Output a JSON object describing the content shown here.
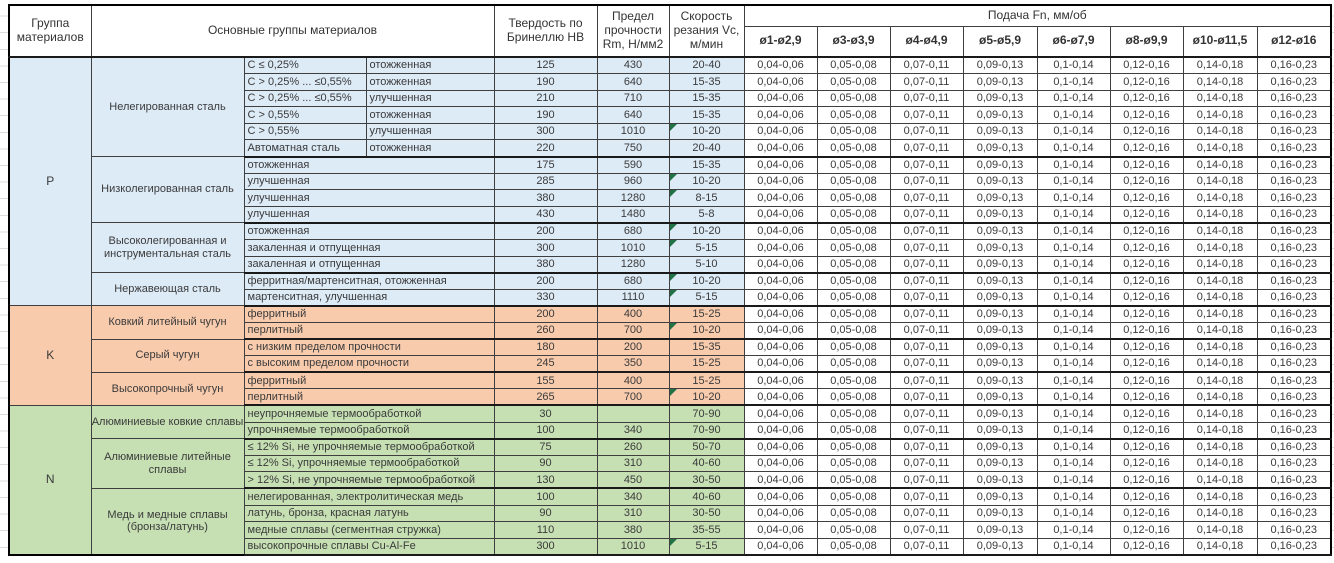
{
  "header": {
    "col_group": "Группа материалов",
    "col_main": "Основные группы материалов",
    "col_hardness": "Твердость по Бринеллю НВ",
    "col_strength": "Предел прочности Rm, Н/мм2",
    "col_speed": "Скорость резания Vc, м/мин",
    "feed_title": "Подача Fn, мм/об",
    "feed_cols": [
      "ø1-ø2,9",
      "ø3-ø3,9",
      "ø4-ø4,9",
      "ø5-ø5,9",
      "ø6-ø7,9",
      "ø8-ø9,9",
      "ø10-ø11,5",
      "ø12-ø16"
    ]
  },
  "feed_values": [
    "0,04-0,06",
    "0,05-0,08",
    "0,07-0,11",
    "0,09-0,13",
    "0,1-0,14",
    "0,12-0,16",
    "0,14-0,18",
    "0,16-0,23"
  ],
  "colors": {
    "group_p": "#DDEBF7",
    "group_k": "#F8CBAD",
    "group_n": "#C6E0B4",
    "flag": "#217346",
    "grid": "#3f3f3f"
  },
  "groups": [
    {
      "code": "P",
      "color": "#DDEBF7",
      "subgroups": [
        {
          "name": "Нелегированная сталь",
          "rows": [
            {
              "c1": "C ≤ 0,25%",
              "c2": "отожженная",
              "hb": "125",
              "rm": "430",
              "vc": "20-40",
              "flag": false
            },
            {
              "c1": "C > 0,25% ... ≤0,55%",
              "c2": "отожженная",
              "hb": "190",
              "rm": "640",
              "vc": "15-35",
              "flag": false
            },
            {
              "c1": "C > 0,25% ... ≤0,55%",
              "c2": "улучшенная",
              "hb": "210",
              "rm": "710",
              "vc": "15-35",
              "flag": false
            },
            {
              "c1": "C > 0,55%",
              "c2": "отожженная",
              "hb": "190",
              "rm": "640",
              "vc": "15-35",
              "flag": false
            },
            {
              "c1": "C > 0,55%",
              "c2": "улучшенная",
              "hb": "300",
              "rm": "1010",
              "vc": "10-20",
              "flag": true
            },
            {
              "c1": "Автоматная сталь",
              "c2": "отожженная",
              "hb": "220",
              "rm": "750",
              "vc": "20-40",
              "flag": false
            }
          ]
        },
        {
          "name": "Низколегированная сталь",
          "rows": [
            {
              "c1": "отожженная",
              "hb": "175",
              "rm": "590",
              "vc": "15-35",
              "flag": false
            },
            {
              "c1": "улучшенная",
              "hb": "285",
              "rm": "960",
              "vc": "10-20",
              "flag": true
            },
            {
              "c1": "улучшенная",
              "hb": "380",
              "rm": "1280",
              "vc": "8-15",
              "flag": true
            },
            {
              "c1": "улучшенная",
              "hb": "430",
              "rm": "1480",
              "vc": "5-8",
              "flag": false
            }
          ]
        },
        {
          "name": "Высоколегированная и инструментальная сталь",
          "rows": [
            {
              "c1": "отожженная",
              "hb": "200",
              "rm": "680",
              "vc": "10-20",
              "flag": true
            },
            {
              "c1": "закаленная и отпущенная",
              "hb": "300",
              "rm": "1010",
              "vc": "5-15",
              "flag": true
            },
            {
              "c1": "закаленная и отпущенная",
              "hb": "380",
              "rm": "1280",
              "vc": "5-10",
              "flag": false
            }
          ]
        },
        {
          "name": "Нержавеющая сталь",
          "rows": [
            {
              "c1": "ферритная/мартенситная, отожженная",
              "hb": "200",
              "rm": "680",
              "vc": "10-20",
              "flag": true
            },
            {
              "c1": "мартенситная, улучшенная",
              "hb": "330",
              "rm": "1110",
              "vc": "5-15",
              "flag": true
            }
          ]
        }
      ]
    },
    {
      "code": "K",
      "color": "#F8CBAD",
      "subgroups": [
        {
          "name": "Ковкий литейный чугун",
          "rows": [
            {
              "c1": "ферритный",
              "hb": "200",
              "rm": "400",
              "vc": "15-25",
              "flag": false
            },
            {
              "c1": "перлитный",
              "hb": "260",
              "rm": "700",
              "vc": "10-20",
              "flag": true
            }
          ]
        },
        {
          "name": "Серый чугун",
          "rows": [
            {
              "c1": "с низким пределом прочности",
              "hb": "180",
              "rm": "200",
              "vc": "15-35",
              "flag": false
            },
            {
              "c1": "с высоким пределом прочности",
              "hb": "245",
              "rm": "350",
              "vc": "15-25",
              "flag": false
            }
          ]
        },
        {
          "name": "Высокопрочный чугун",
          "rows": [
            {
              "c1": "ферритный",
              "hb": "155",
              "rm": "400",
              "vc": "15-25",
              "flag": false
            },
            {
              "c1": "перлитный",
              "hb": "265",
              "rm": "700",
              "vc": "10-20",
              "flag": true
            }
          ]
        }
      ]
    },
    {
      "code": "N",
      "color": "#C6E0B4",
      "subgroups": [
        {
          "name": "Алюминиевые ковкие сплавы",
          "rows": [
            {
              "c1": "неупрочняемые термообработкой",
              "hb": "30",
              "rm": "",
              "vc": "70-90",
              "flag": false
            },
            {
              "c1": "упрочняемые термообработкой",
              "hb": "100",
              "rm": "340",
              "vc": "70-90",
              "flag": false
            }
          ]
        },
        {
          "name": "Алюминиевые литейные сплавы",
          "rows": [
            {
              "c1": "≤ 12% Si, не упрочняемые термообработкой",
              "hb": "75",
              "rm": "260",
              "vc": "50-70",
              "flag": false
            },
            {
              "c1": "≤ 12% Si, упрочняемые термообработкой",
              "hb": "90",
              "rm": "310",
              "vc": "40-60",
              "flag": false
            },
            {
              "c1": "> 12% Si, не упрочняемые термообработкой",
              "hb": "130",
              "rm": "450",
              "vc": "30-50",
              "flag": false
            }
          ]
        },
        {
          "name": "Медь и медные сплавы (бронза/латунь)",
          "rows": [
            {
              "c1": "нелегированная, электролитическая медь",
              "hb": "100",
              "rm": "340",
              "vc": "40-60",
              "flag": false
            },
            {
              "c1": "латунь, бронза, красная латунь",
              "hb": "90",
              "rm": "310",
              "vc": "30-50",
              "flag": false
            },
            {
              "c1": "медные сплавы (сегментная стружка)",
              "hb": "110",
              "rm": "380",
              "vc": "35-55",
              "flag": false
            },
            {
              "c1": "высокопрочные сплавы Cu-Al-Fe",
              "hb": "300",
              "rm": "1010",
              "vc": "5-15",
              "flag": true
            }
          ]
        }
      ]
    }
  ]
}
